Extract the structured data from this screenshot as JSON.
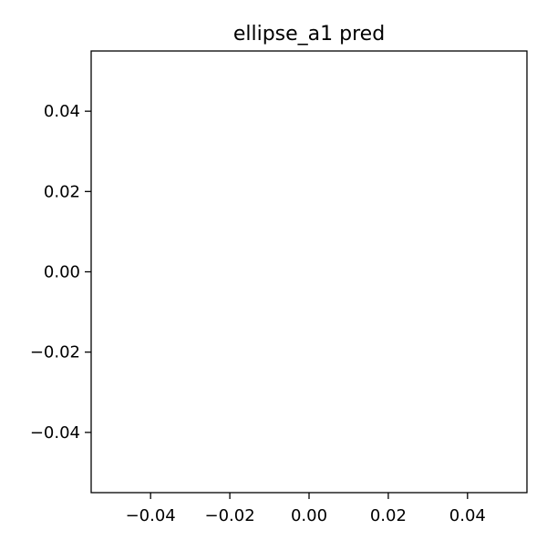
{
  "chart_data": {
    "type": "line",
    "title": "ellipse_a1 pred",
    "xlabel": "",
    "ylabel": "",
    "xlim": [
      -0.055,
      0.055
    ],
    "ylim": [
      -0.055,
      0.055
    ],
    "x_ticks": [
      -0.04,
      -0.02,
      0.0,
      0.02,
      0.04
    ],
    "x_tick_labels": [
      "−0.04",
      "−0.02",
      "0.00",
      "0.02",
      "0.04"
    ],
    "y_ticks": [
      0.04,
      0.02,
      0.0,
      -0.02,
      -0.04
    ],
    "y_tick_labels": [
      "0.04",
      "0.02",
      "0.00",
      "−0.02",
      "−0.04"
    ],
    "series": [],
    "grid": false,
    "legend": "none"
  }
}
